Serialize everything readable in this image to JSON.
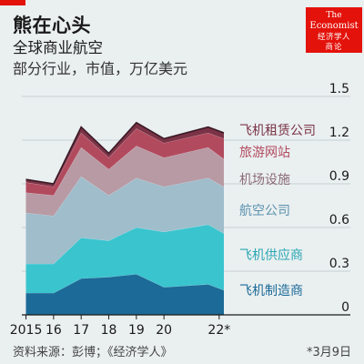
{
  "header": {
    "title": "熊在心头",
    "subtitle": "全球商业航空",
    "unit": "部分行业，市值，万亿美元"
  },
  "logo": {
    "line1": "The",
    "line2": "Economist",
    "line3": "经济学人",
    "line4": "商论"
  },
  "footer": {
    "source": "资料来源：彭博；《经济学人》",
    "date": "*3月9日"
  },
  "colors": {
    "accent": "#e3120b",
    "manufacturers": "#1b6a97",
    "suppliers": "#39c4ce",
    "airlines": "#9fbdcb",
    "airports": "#b79aa4",
    "travel_sites": "#b24a5e",
    "lessors": "#7a3346"
  },
  "chart_data": {
    "type": "area",
    "stacked": true,
    "x": [
      2015,
      2016,
      2017,
      2018,
      2019,
      2020,
      2021.6,
      2022.17
    ],
    "x_tick_values": [
      2015,
      2016,
      2017,
      2018,
      2019,
      2020,
      2022
    ],
    "x_tick_labels": [
      "2015",
      "16",
      "17",
      "18",
      "19",
      "20",
      "22*"
    ],
    "ylim": [
      0,
      1.5
    ],
    "y_ticks": [
      0,
      0.3,
      0.6,
      0.9,
      1.2,
      1.5
    ],
    "y_tick_labels": [
      "0",
      "0.3",
      "0.6",
      "0.9",
      "1.2",
      "1.5"
    ],
    "grid": true,
    "series": [
      {
        "name": "飞机制造商",
        "values": [
          0.15,
          0.15,
          0.25,
          0.26,
          0.28,
          0.19,
          0.21,
          0.17
        ]
      },
      {
        "name": "飞机供应商",
        "values": [
          0.2,
          0.2,
          0.28,
          0.25,
          0.32,
          0.38,
          0.41,
          0.39
        ]
      },
      {
        "name": "航空公司",
        "values": [
          0.35,
          0.33,
          0.42,
          0.31,
          0.34,
          0.31,
          0.32,
          0.32
        ]
      },
      {
        "name": "机场设施",
        "values": [
          0.14,
          0.14,
          0.2,
          0.18,
          0.22,
          0.2,
          0.21,
          0.19
        ]
      },
      {
        "name": "旅游网站",
        "values": [
          0.07,
          0.06,
          0.1,
          0.08,
          0.12,
          0.1,
          0.1,
          0.14
        ]
      },
      {
        "name": "飞机租赁公司",
        "values": [
          0.02,
          0.02,
          0.04,
          0.03,
          0.04,
          0.03,
          0.04,
          0.04
        ]
      }
    ]
  }
}
